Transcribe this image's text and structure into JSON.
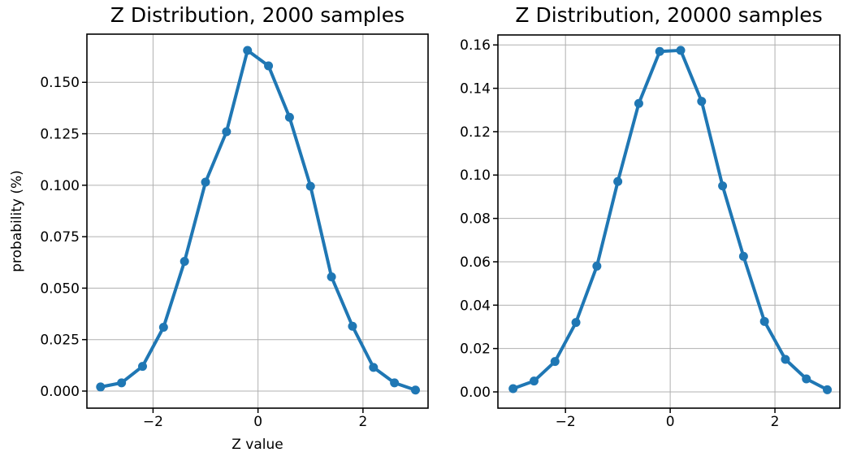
{
  "page": {
    "background": "#ffffff"
  },
  "chart_data": [
    {
      "type": "line",
      "title": "Z Distribution, 2000 samples",
      "xlabel": "Z value",
      "ylabel": "probability (%)",
      "x": [
        -3.0,
        -2.6,
        -2.2,
        -1.8,
        -1.4,
        -1.0,
        -0.6,
        -0.2,
        0.2,
        0.6,
        1.0,
        1.4,
        1.8,
        2.2,
        2.6,
        3.0
      ],
      "y": [
        0.002,
        0.004,
        0.012,
        0.031,
        0.063,
        0.1015,
        0.126,
        0.1655,
        0.158,
        0.133,
        0.0995,
        0.0555,
        0.0315,
        0.0115,
        0.004,
        0.0005
      ],
      "xlim": [
        -3.26,
        3.24
      ],
      "ylim": [
        -0.0083,
        0.1734
      ],
      "xticks": {
        "values": [
          -2,
          0,
          2
        ],
        "labels": [
          "−2",
          "0",
          "2"
        ]
      },
      "yticks": {
        "values": [
          0.0,
          0.025,
          0.05,
          0.075,
          0.1,
          0.125,
          0.15
        ],
        "labels": [
          "0.000",
          "0.025",
          "0.050",
          "0.075",
          "0.100",
          "0.125",
          "0.150"
        ]
      },
      "grid": true,
      "legend": "none",
      "marker": "circle",
      "line_color": "#1f77b4",
      "grid_color": "#b0b0b0"
    },
    {
      "type": "line",
      "title": "Z Distribution, 20000 samples",
      "xlabel": "",
      "ylabel": "",
      "x": [
        -3.0,
        -2.6,
        -2.2,
        -1.8,
        -1.4,
        -1.0,
        -0.6,
        -0.2,
        0.2,
        0.6,
        1.0,
        1.4,
        1.8,
        2.2,
        2.6,
        3.0
      ],
      "y": [
        0.0015,
        0.005,
        0.014,
        0.032,
        0.058,
        0.097,
        0.133,
        0.157,
        0.1575,
        0.134,
        0.095,
        0.0625,
        0.0325,
        0.015,
        0.006,
        0.001
      ],
      "xlim": [
        -3.29,
        3.24
      ],
      "ylim": [
        -0.0075,
        0.1646
      ],
      "xticks": {
        "values": [
          -2,
          0,
          2
        ],
        "labels": [
          "−2",
          "0",
          "2"
        ]
      },
      "yticks": {
        "values": [
          0.0,
          0.02,
          0.04,
          0.06,
          0.08,
          0.1,
          0.12,
          0.14,
          0.16
        ],
        "labels": [
          "0.00",
          "0.02",
          "0.04",
          "0.06",
          "0.08",
          "0.10",
          "0.12",
          "0.14",
          "0.16"
        ]
      },
      "grid": true,
      "legend": "none",
      "marker": "circle",
      "line_color": "#1f77b4",
      "grid_color": "#b0b0b0"
    }
  ]
}
